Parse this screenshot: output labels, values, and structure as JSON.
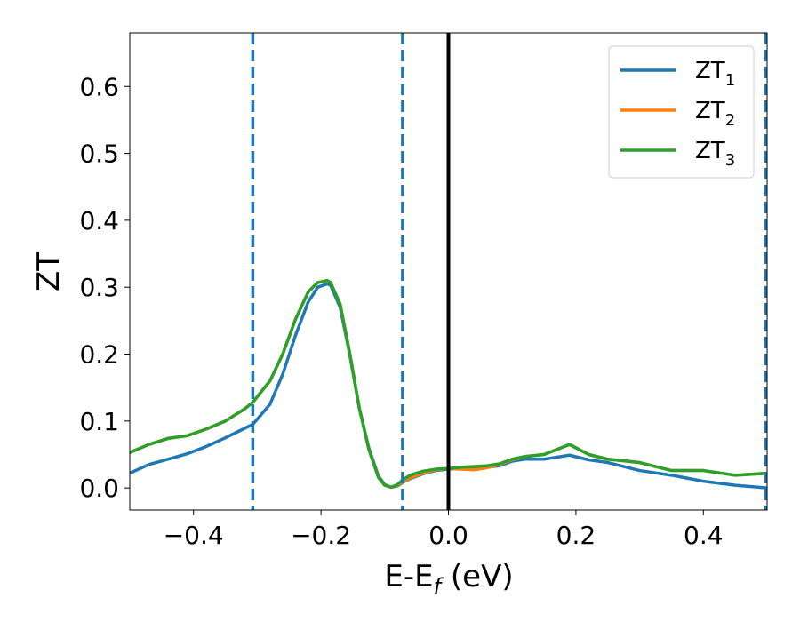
{
  "chart_data": {
    "type": "line",
    "title": "",
    "xlabel": "E-E",
    "xlabel_sub": "f",
    "xlabel_unit": " (eV)",
    "ylabel": "ZT",
    "xlim": [
      -0.5,
      0.5
    ],
    "ylim": [
      -0.033,
      0.68
    ],
    "x_ticks": [
      {
        "value": -0.4,
        "label": "−0.4"
      },
      {
        "value": -0.2,
        "label": "−0.2"
      },
      {
        "value": 0.0,
        "label": "0.0"
      },
      {
        "value": 0.2,
        "label": "0.2"
      },
      {
        "value": 0.4,
        "label": "0.4"
      }
    ],
    "y_ticks": [
      {
        "value": 0.0,
        "label": "0.0"
      },
      {
        "value": 0.1,
        "label": "0.1"
      },
      {
        "value": 0.2,
        "label": "0.2"
      },
      {
        "value": 0.3,
        "label": "0.3"
      },
      {
        "value": 0.4,
        "label": "0.4"
      },
      {
        "value": 0.5,
        "label": "0.5"
      },
      {
        "value": 0.6,
        "label": "0.6"
      }
    ],
    "grid": false,
    "legend_position": "top-right",
    "vlines": [
      {
        "x": -0.307,
        "style": "dashed",
        "color": "#1f77b4"
      },
      {
        "x": -0.072,
        "style": "dashed",
        "color": "#1f77b4"
      },
      {
        "x": 0.0,
        "style": "solid",
        "color": "#000000"
      },
      {
        "x": 0.498,
        "style": "dashed",
        "color": "#1f77b4"
      }
    ],
    "series": [
      {
        "name": "ZT",
        "name_sub": "1",
        "color": "#1f77b4",
        "x": [
          -0.5,
          -0.47,
          -0.44,
          -0.41,
          -0.38,
          -0.35,
          -0.32,
          -0.307,
          -0.28,
          -0.26,
          -0.24,
          -0.22,
          -0.205,
          -0.19,
          -0.185,
          -0.17,
          -0.155,
          -0.14,
          -0.125,
          -0.11,
          -0.1,
          -0.09,
          -0.08,
          -0.072,
          -0.06,
          -0.04,
          -0.02,
          0.0,
          0.02,
          0.05,
          0.08,
          0.1,
          0.12,
          0.15,
          0.19,
          0.22,
          0.25,
          0.3,
          0.35,
          0.4,
          0.45,
          0.5
        ],
        "y": [
          0.022,
          0.035,
          0.043,
          0.051,
          0.062,
          0.075,
          0.089,
          0.095,
          0.125,
          0.17,
          0.228,
          0.278,
          0.3,
          0.305,
          0.303,
          0.27,
          0.2,
          0.12,
          0.06,
          0.018,
          0.005,
          0.001,
          0.003,
          0.008,
          0.014,
          0.021,
          0.026,
          0.028,
          0.03,
          0.03,
          0.033,
          0.04,
          0.043,
          0.043,
          0.049,
          0.042,
          0.038,
          0.026,
          0.019,
          0.01,
          0.004,
          0.0
        ]
      },
      {
        "name": "ZT",
        "name_sub": "2",
        "color": "#ff7f0e",
        "x": [
          -0.5,
          -0.47,
          -0.44,
          -0.41,
          -0.38,
          -0.35,
          -0.32,
          -0.307,
          -0.28,
          -0.26,
          -0.24,
          -0.22,
          -0.205,
          -0.19,
          -0.185,
          -0.17,
          -0.155,
          -0.14,
          -0.125,
          -0.11,
          -0.1,
          -0.09,
          -0.08,
          -0.072,
          -0.06,
          -0.04,
          -0.02,
          0.0,
          0.02,
          0.04,
          0.06,
          0.08,
          0.1,
          0.12,
          0.15,
          0.19,
          0.22,
          0.25,
          0.3,
          0.35,
          0.4,
          0.45,
          0.5
        ],
        "y": [
          0.053,
          0.065,
          0.074,
          0.078,
          0.088,
          0.1,
          0.118,
          0.128,
          0.16,
          0.2,
          0.252,
          0.293,
          0.307,
          0.31,
          0.307,
          0.275,
          0.202,
          0.12,
          0.058,
          0.016,
          0.004,
          0.001,
          0.004,
          0.009,
          0.015,
          0.022,
          0.027,
          0.029,
          0.028,
          0.027,
          0.03,
          0.035,
          0.042,
          0.047,
          0.05,
          0.065,
          0.05,
          0.043,
          0.038,
          0.026,
          0.026,
          0.019,
          0.022
        ]
      },
      {
        "name": "ZT",
        "name_sub": "3",
        "color": "#2ca02c",
        "x": [
          -0.5,
          -0.47,
          -0.44,
          -0.41,
          -0.38,
          -0.35,
          -0.32,
          -0.307,
          -0.28,
          -0.26,
          -0.24,
          -0.22,
          -0.205,
          -0.19,
          -0.185,
          -0.17,
          -0.155,
          -0.14,
          -0.125,
          -0.11,
          -0.1,
          -0.09,
          -0.08,
          -0.072,
          -0.06,
          -0.04,
          -0.02,
          0.0,
          0.02,
          0.04,
          0.06,
          0.08,
          0.1,
          0.12,
          0.15,
          0.19,
          0.22,
          0.25,
          0.3,
          0.35,
          0.4,
          0.45,
          0.5
        ],
        "y": [
          0.053,
          0.065,
          0.074,
          0.078,
          0.088,
          0.1,
          0.118,
          0.128,
          0.16,
          0.2,
          0.252,
          0.293,
          0.307,
          0.31,
          0.307,
          0.275,
          0.202,
          0.12,
          0.058,
          0.016,
          0.004,
          0.001,
          0.005,
          0.012,
          0.019,
          0.025,
          0.028,
          0.029,
          0.031,
          0.032,
          0.033,
          0.036,
          0.043,
          0.047,
          0.05,
          0.065,
          0.05,
          0.043,
          0.038,
          0.026,
          0.026,
          0.019,
          0.022
        ]
      }
    ]
  }
}
